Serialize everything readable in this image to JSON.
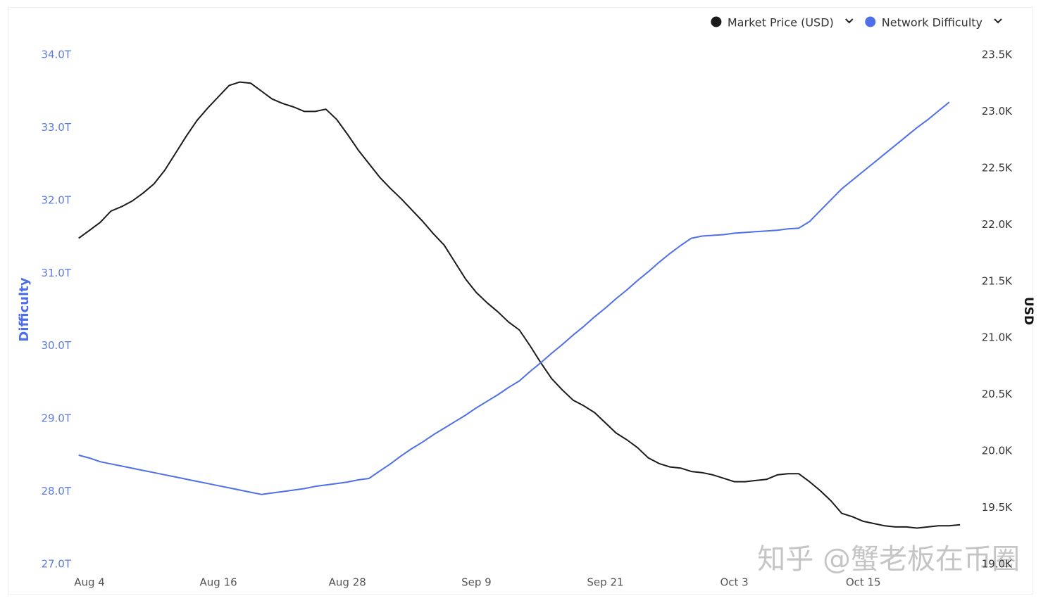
{
  "chart_data": {
    "type": "line",
    "y_label": "Difficulty",
    "y2_label": "USD",
    "categories": [
      null,
      "Aug 4",
      null,
      null,
      null,
      null,
      null,
      null,
      null,
      null,
      null,
      null,
      null,
      "Aug 16",
      null,
      null,
      null,
      null,
      null,
      null,
      null,
      null,
      null,
      null,
      null,
      "Aug 28",
      null,
      null,
      null,
      null,
      null,
      null,
      null,
      null,
      null,
      null,
      null,
      "Sep 9",
      null,
      null,
      null,
      null,
      null,
      null,
      null,
      null,
      null,
      null,
      null,
      "Sep 21",
      null,
      null,
      null,
      null,
      null,
      null,
      null,
      null,
      null,
      null,
      null,
      "Oct 3",
      null,
      null,
      null,
      null,
      null,
      null,
      null,
      null,
      null,
      null,
      null,
      "Oct 15",
      null,
      null,
      null,
      null,
      null,
      null,
      null,
      null,
      null
    ],
    "series": [
      {
        "name": "Market Price (USD)",
        "color": "#1a1a1a",
        "axis": "y2",
        "values": [
          21.88,
          21.95,
          22.02,
          22.12,
          22.16,
          22.21,
          22.28,
          22.36,
          22.48,
          22.63,
          22.78,
          22.92,
          23.03,
          23.13,
          23.23,
          23.26,
          23.25,
          23.18,
          23.11,
          23.07,
          23.04,
          23.0,
          23.0,
          23.02,
          22.93,
          22.8,
          22.66,
          22.54,
          22.42,
          22.32,
          22.23,
          22.13,
          22.03,
          21.92,
          21.82,
          21.67,
          21.52,
          21.4,
          21.31,
          21.23,
          21.14,
          21.07,
          20.93,
          20.78,
          20.64,
          20.54,
          20.45,
          20.4,
          20.34,
          20.25,
          20.16,
          20.1,
          20.03,
          19.94,
          19.89,
          19.86,
          19.85,
          19.82,
          19.81,
          19.79,
          19.76,
          19.73,
          19.73,
          19.74,
          19.75,
          19.79,
          19.8,
          19.8,
          19.73,
          19.65,
          19.56,
          19.45,
          19.42,
          19.38,
          19.36,
          19.34,
          19.33,
          19.33,
          19.32,
          19.33,
          19.34,
          19.34,
          19.35
        ]
      },
      {
        "name": "Network Difficulty",
        "color": "#4f6fe8",
        "axis": "y",
        "values": [
          28.5,
          28.46,
          28.41,
          28.38,
          28.35,
          28.32,
          28.29,
          28.26,
          28.23,
          28.2,
          28.17,
          28.14,
          28.11,
          28.08,
          28.05,
          28.02,
          27.99,
          27.96,
          27.98,
          28.0,
          28.02,
          28.04,
          28.07,
          28.09,
          28.11,
          28.13,
          28.16,
          28.18,
          28.28,
          28.38,
          28.49,
          28.59,
          28.68,
          28.78,
          28.87,
          28.96,
          29.05,
          29.15,
          29.24,
          29.33,
          29.43,
          29.52,
          29.65,
          29.77,
          29.9,
          30.02,
          30.15,
          30.27,
          30.4,
          30.52,
          30.65,
          30.77,
          30.9,
          31.02,
          31.15,
          31.27,
          31.38,
          31.48,
          31.51,
          31.52,
          31.53,
          31.55,
          31.56,
          31.57,
          31.58,
          31.59,
          31.61,
          31.62,
          31.71,
          31.86,
          32.01,
          32.16,
          32.28,
          32.4,
          32.52,
          32.64,
          32.76,
          32.88,
          33.0,
          33.11,
          33.23,
          33.35,
          null
        ]
      }
    ],
    "ylim": [
      27,
      34
    ],
    "yticks": [
      {
        "value": 27,
        "label": "27.0T"
      },
      {
        "value": 28,
        "label": "28.0T"
      },
      {
        "value": 29,
        "label": "29.0T"
      },
      {
        "value": 30,
        "label": "30.0T"
      },
      {
        "value": 31,
        "label": "31.0T"
      },
      {
        "value": 32,
        "label": "32.0T"
      },
      {
        "value": 33,
        "label": "33.0T"
      },
      {
        "value": 34,
        "label": "34.0T"
      }
    ],
    "y2lim": [
      19,
      23.5
    ],
    "y2ticks": [
      {
        "value": 19,
        "label": "19.0K"
      },
      {
        "value": 19.5,
        "label": "19.5K"
      },
      {
        "value": 20,
        "label": "20.0K"
      },
      {
        "value": 20.5,
        "label": "20.5K"
      },
      {
        "value": 21,
        "label": "21.0K"
      },
      {
        "value": 21.5,
        "label": "21.5K"
      },
      {
        "value": 22,
        "label": "22.0K"
      },
      {
        "value": 22.5,
        "label": "22.5K"
      },
      {
        "value": 23,
        "label": "23.0K"
      },
      {
        "value": 23.5,
        "label": "23.5K"
      }
    ],
    "grid": false,
    "legend": "top-right",
    "watermark": "知乎 @蟹老板在币圈"
  }
}
